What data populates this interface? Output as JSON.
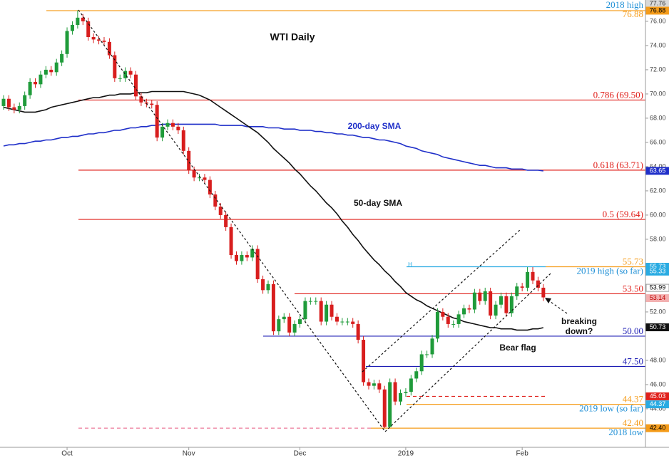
{
  "chart_data": {
    "type": "candlestick",
    "categories": [
      null,
      null,
      null,
      null,
      null,
      null,
      null,
      null,
      null,
      null,
      null,
      null,
      "Oct",
      null,
      null,
      null,
      null,
      null,
      null,
      null,
      null,
      null,
      null,
      null,
      null,
      null,
      null,
      null,
      null,
      null,
      null,
      null,
      null,
      null,
      null,
      "Nov",
      null,
      null,
      null,
      null,
      null,
      null,
      null,
      null,
      null,
      null,
      null,
      null,
      null,
      null,
      null,
      null,
      null,
      null,
      null,
      null,
      "Dec",
      null,
      null,
      null,
      null,
      null,
      null,
      null,
      null,
      null,
      null,
      null,
      null,
      null,
      null,
      null,
      null,
      null,
      null,
      null,
      "2019",
      null,
      null,
      null,
      null,
      null,
      null,
      null,
      null,
      null,
      null,
      null,
      null,
      null,
      null,
      null,
      null,
      null,
      null,
      null,
      null,
      null,
      "Feb",
      null,
      null,
      null,
      null
    ],
    "open": [
      69.0,
      69.6,
      68.9,
      68.7,
      69.0,
      69.9,
      71.0,
      70.8,
      71.6,
      72.0,
      71.8,
      72.6,
      73.3,
      75.2,
      75.7,
      76.3,
      76.0,
      74.7,
      74.5,
      74.4,
      74.3,
      73.2,
      71.3,
      71.3,
      71.9,
      71.6,
      69.8,
      69.3,
      69.2,
      69.1,
      66.4,
      67.3,
      67.6,
      67.3,
      67.0,
      65.3,
      63.7,
      63.1,
      63.1,
      62.9,
      61.7,
      60.7,
      60.0,
      59.0,
      56.7,
      56.2,
      56.7,
      56.5,
      57.2,
      54.7,
      53.8,
      54.3,
      50.4,
      51.4,
      51.6,
      50.3,
      51.0,
      51.4,
      52.9,
      52.9,
      52.9,
      51.2,
      52.6,
      51.6,
      51.2,
      51.2,
      51.2,
      51.0,
      49.7,
      46.2,
      45.9,
      46.1,
      45.6,
      42.5,
      46.2,
      44.6,
      45.3,
      45.4,
      46.5,
      47.1,
      48.5,
      48.5,
      49.8,
      52.0,
      51.6,
      51.0,
      51.0,
      51.8,
      52.3,
      52.2,
      53.6,
      52.9,
      53.7,
      51.7,
      52.6,
      53.3,
      51.9,
      53.3,
      54.1,
      54.0,
      55.3,
      54.6,
      54.0
    ],
    "high": [
      69.9,
      69.9,
      69.2,
      69.3,
      70.2,
      71.3,
      71.3,
      71.9,
      72.3,
      72.3,
      72.9,
      73.6,
      75.5,
      76.0,
      76.9,
      76.6,
      76.3,
      75.0,
      74.8,
      74.7,
      74.6,
      73.5,
      71.6,
      72.2,
      72.2,
      71.9,
      70.1,
      69.6,
      69.5,
      69.4,
      67.6,
      67.9,
      67.9,
      67.6,
      67.3,
      65.6,
      64.0,
      63.4,
      63.4,
      63.2,
      62.0,
      61.0,
      60.3,
      59.3,
      57.0,
      57.0,
      57.0,
      57.5,
      57.5,
      55.0,
      54.6,
      54.6,
      51.7,
      51.9,
      51.9,
      51.3,
      51.7,
      53.2,
      53.2,
      53.2,
      53.2,
      52.9,
      52.9,
      51.9,
      51.5,
      51.5,
      51.5,
      51.3,
      50.0,
      46.5,
      46.4,
      46.4,
      45.9,
      46.5,
      46.5,
      45.6,
      45.7,
      46.8,
      47.4,
      48.8,
      48.8,
      50.1,
      52.3,
      52.3,
      51.9,
      51.3,
      52.1,
      52.6,
      52.6,
      53.9,
      53.9,
      54.0,
      54.0,
      52.9,
      53.6,
      53.6,
      53.6,
      54.4,
      54.4,
      55.7,
      55.7,
      54.9,
      54.3
    ],
    "low": [
      68.7,
      68.6,
      68.4,
      68.4,
      68.7,
      69.6,
      70.5,
      70.5,
      71.3,
      71.5,
      71.5,
      72.3,
      73.0,
      74.9,
      75.4,
      75.7,
      74.4,
      74.2,
      74.1,
      74.0,
      72.9,
      71.0,
      71.0,
      71.0,
      71.3,
      69.5,
      69.0,
      68.9,
      68.8,
      66.1,
      66.1,
      67.0,
      67.0,
      66.7,
      65.0,
      63.4,
      62.8,
      62.8,
      62.6,
      61.4,
      60.4,
      59.7,
      58.7,
      56.4,
      55.9,
      55.9,
      56.2,
      56.2,
      54.4,
      53.5,
      53.5,
      50.1,
      50.1,
      51.1,
      50.0,
      50.0,
      50.7,
      51.1,
      52.6,
      52.6,
      50.9,
      50.9,
      51.3,
      50.9,
      50.9,
      50.9,
      50.7,
      49.4,
      45.9,
      45.6,
      45.6,
      45.3,
      42.4,
      42.5,
      44.3,
      44.3,
      45.0,
      45.1,
      46.2,
      46.8,
      48.2,
      48.2,
      49.5,
      51.3,
      50.7,
      50.7,
      50.7,
      51.5,
      51.9,
      51.9,
      52.6,
      52.6,
      51.4,
      51.4,
      52.3,
      51.6,
      51.6,
      53.0,
      53.7,
      53.7,
      54.3,
      53.7,
      52.9
    ],
    "close": [
      69.6,
      68.9,
      68.7,
      69.0,
      69.9,
      71.0,
      70.8,
      71.6,
      72.0,
      71.8,
      72.6,
      73.3,
      75.2,
      75.7,
      76.3,
      76.0,
      74.7,
      74.5,
      74.4,
      74.3,
      73.2,
      71.3,
      71.3,
      71.9,
      71.6,
      69.8,
      69.3,
      69.2,
      69.1,
      66.4,
      67.3,
      67.6,
      67.3,
      67.0,
      65.3,
      63.7,
      63.1,
      63.1,
      62.9,
      61.7,
      60.7,
      60.0,
      59.0,
      56.7,
      56.2,
      56.7,
      56.5,
      57.2,
      54.7,
      53.8,
      54.3,
      50.4,
      51.4,
      51.6,
      50.3,
      51.0,
      51.4,
      52.9,
      52.9,
      52.9,
      51.2,
      52.6,
      51.6,
      51.2,
      51.2,
      51.2,
      51.0,
      49.7,
      46.2,
      45.9,
      46.1,
      45.6,
      42.5,
      46.2,
      44.6,
      45.3,
      45.4,
      46.5,
      47.1,
      48.5,
      48.5,
      49.8,
      52.0,
      51.6,
      51.0,
      51.0,
      51.8,
      52.3,
      52.2,
      53.6,
      52.9,
      53.7,
      51.7,
      52.6,
      53.3,
      51.9,
      53.3,
      54.1,
      54.0,
      55.3,
      54.6,
      54.0,
      53.2
    ],
    "up_color": "#1f9b3a",
    "down_color": "#d81e1e",
    "series": [
      {
        "name": "200-day SMA",
        "color": "#1f2fc9",
        "values": [
          65.7,
          65.8,
          65.8,
          65.9,
          65.9,
          66.0,
          66.1,
          66.1,
          66.2,
          66.2,
          66.3,
          66.4,
          66.4,
          66.5,
          66.5,
          66.6,
          66.7,
          66.7,
          66.8,
          66.8,
          66.9,
          67.0,
          67.0,
          67.1,
          67.2,
          67.2,
          67.3,
          67.3,
          67.4,
          67.4,
          67.5,
          67.5,
          67.5,
          67.5,
          67.5,
          67.5,
          67.5,
          67.5,
          67.5,
          67.5,
          67.5,
          67.4,
          67.4,
          67.4,
          67.4,
          67.4,
          67.3,
          67.3,
          67.3,
          67.3,
          67.2,
          67.2,
          67.2,
          67.1,
          67.1,
          67.1,
          67.0,
          67.0,
          67.0,
          66.9,
          66.9,
          66.8,
          66.8,
          66.7,
          66.7,
          66.6,
          66.6,
          66.5,
          66.4,
          66.4,
          66.3,
          66.2,
          66.2,
          66.1,
          66.0,
          65.9,
          65.7,
          65.6,
          65.5,
          65.3,
          65.2,
          65.1,
          65.0,
          64.8,
          64.7,
          64.6,
          64.5,
          64.4,
          64.3,
          64.2,
          64.1,
          64.1,
          64.0,
          63.9,
          63.9,
          63.9,
          63.8,
          63.8,
          63.8,
          63.7,
          63.7,
          63.7,
          63.65
        ]
      },
      {
        "name": "50-day SMA",
        "color": "#111111",
        "values": [
          68.9,
          68.8,
          68.7,
          68.6,
          68.5,
          68.5,
          68.5,
          68.6,
          68.7,
          68.9,
          69.0,
          69.1,
          69.2,
          69.3,
          69.4,
          69.5,
          69.6,
          69.7,
          69.7,
          69.8,
          69.9,
          69.9,
          70.0,
          70.0,
          70.0,
          70.1,
          70.1,
          70.1,
          70.2,
          70.2,
          70.2,
          70.2,
          70.2,
          70.2,
          70.2,
          70.1,
          70.0,
          69.9,
          69.7,
          69.5,
          69.2,
          68.9,
          68.6,
          68.3,
          68.0,
          67.7,
          67.4,
          67.1,
          66.8,
          66.4,
          66.0,
          65.5,
          65.1,
          64.7,
          64.3,
          63.8,
          63.4,
          62.9,
          62.4,
          62.0,
          61.5,
          61.0,
          60.6,
          60.1,
          59.5,
          59.0,
          58.4,
          57.9,
          57.3,
          56.8,
          56.3,
          55.9,
          55.4,
          55.0,
          54.5,
          54.1,
          53.6,
          53.3,
          53.0,
          52.8,
          52.5,
          52.3,
          52.1,
          51.9,
          51.7,
          51.5,
          51.4,
          51.2,
          51.1,
          51.0,
          50.9,
          50.8,
          50.7,
          50.7,
          50.6,
          50.6,
          50.6,
          50.5,
          50.5,
          50.5,
          50.6,
          50.6,
          50.7
        ]
      }
    ],
    "ylim": [
      40.82,
      77.76
    ],
    "yticks": [
      {
        "value": 44,
        "label": "44.00"
      },
      {
        "value": 46,
        "label": "46.00"
      },
      {
        "value": 48,
        "label": "48.00"
      },
      {
        "value": 52,
        "label": "52.00"
      },
      {
        "value": 58,
        "label": "58.00"
      },
      {
        "value": 60,
        "label": "60.00"
      },
      {
        "value": 62,
        "label": "62.00"
      },
      {
        "value": 64,
        "label": "64.00"
      },
      {
        "value": 66,
        "label": "66.00"
      },
      {
        "value": 68,
        "label": "68.00"
      },
      {
        "value": 70,
        "label": "70.00"
      },
      {
        "value": 72,
        "label": "72.00"
      },
      {
        "value": 74,
        "label": "74.00"
      },
      {
        "value": 76,
        "label": "76.00"
      }
    ],
    "levels": [
      {
        "value": 76.88,
        "label": "76.88",
        "caption": "2018 high",
        "color": "#f59c1a",
        "label_color": "#f59c1a"
      },
      {
        "value": 69.5,
        "label": "0.786 (69.50)",
        "color": "#e0201b",
        "label_color": "#e0201b"
      },
      {
        "value": 63.71,
        "label": "0.618 (63.71)",
        "color": "#e0201b",
        "label_color": "#e0201b"
      },
      {
        "value": 59.64,
        "label": "0.5 (59.64)",
        "color": "#e0201b",
        "label_color": "#e0201b"
      },
      {
        "value": 55.73,
        "label": "55.73",
        "caption": "2019 high (so far)",
        "color": "#29abe2",
        "label_color": "#f59c1a"
      },
      {
        "value": 53.5,
        "label": "53.50",
        "color": "#e0201b",
        "label_color": "#e0201b"
      },
      {
        "value": 50,
        "label": "50.00",
        "color": "#1c1cb4",
        "label_color": "#1c1cb4"
      },
      {
        "value": 47.5,
        "label": "47.50",
        "color": "#1c1cb4",
        "label_color": "#1c1cb4"
      },
      {
        "value": 45.03,
        "color": "#e0201b",
        "dashed": true
      },
      {
        "value": 44.37,
        "label": "44.37",
        "caption": "2019 low (so far)",
        "color": "#f59c1a",
        "label_color": "#f59c1a"
      },
      {
        "value": 42.4,
        "label": "42.40",
        "caption": "2018 low",
        "color": "#f59c1a",
        "label_color": "#f59c1a"
      }
    ],
    "price_tags": [
      {
        "value": 77.76,
        "label": "77.76",
        "color": "#d9d9d9",
        "text_color": "#333333"
      },
      {
        "value": 76.88,
        "label": "76.88",
        "color": "#f59c1a",
        "text_color": "#000000"
      },
      {
        "value": 63.65,
        "label": "63.65",
        "color": "#1f2fc9",
        "text_color": "#ffffff"
      },
      {
        "value": 55.73,
        "label": "55.73",
        "color": "#29abe2",
        "text_color": "#ffffff"
      },
      {
        "value": 55.33,
        "label": "55.33",
        "color": "#29abe2",
        "text_color": "#ffffff"
      },
      {
        "value": 53.99,
        "label": "53.99",
        "color": "#ffffff",
        "text_color": "#000000"
      },
      {
        "value": 53.14,
        "label": "53.14",
        "color": "#f3b0b0",
        "text_color": "#c00000"
      },
      {
        "value": 50.73,
        "label": "50.73",
        "color": "#111111",
        "text_color": "#ffffff"
      },
      {
        "value": 45.03,
        "label": "45.03",
        "color": "#e0201b",
        "text_color": "#ffffff"
      },
      {
        "value": 44.37,
        "label": "44.37",
        "color": "#29abe2",
        "text_color": "#ffffff"
      },
      {
        "value": 42.4,
        "label": "42.40",
        "color": "#f59c1a",
        "text_color": "#000000"
      }
    ],
    "annotations": [
      {
        "text": "WTI Daily"
      },
      {
        "text": "200-day SMA",
        "color": "#1f2fc9"
      },
      {
        "text": "50-day SMA",
        "color": "#111111"
      },
      {
        "text": "Bear flag",
        "color": "#111111"
      },
      {
        "text": "breaking",
        "color": "#111111"
      },
      {
        "text": "down?",
        "color": "#111111"
      },
      {
        "text": "H",
        "color": "#29abe2"
      }
    ]
  }
}
